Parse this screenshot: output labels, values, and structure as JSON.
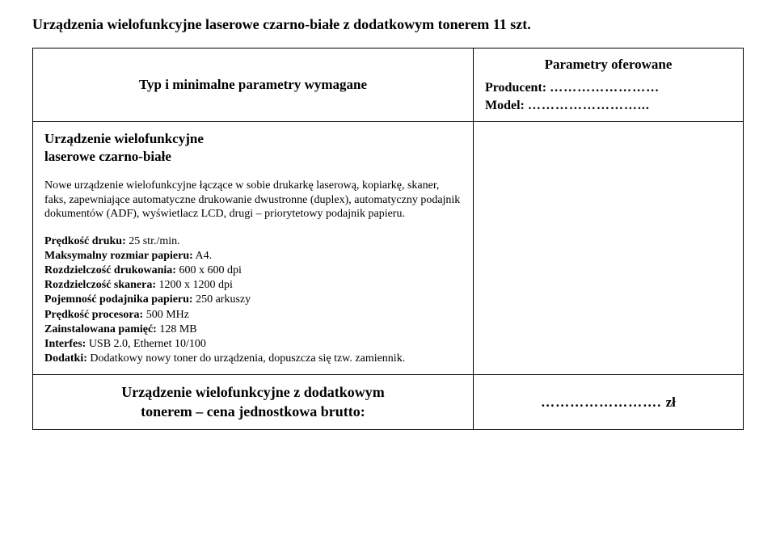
{
  "page": {
    "title": "Urządzenia wielofunkcyjne laserowe czarno-białe z dodatkowym tonerem 11 szt."
  },
  "header": {
    "left": "Typ i minimalne parametry wymagane",
    "right_title": "Parametry oferowane",
    "producer_label": "Producent:",
    "producer_dots": "……………………",
    "model_label": "Model:",
    "model_dots": "……………………..."
  },
  "body": {
    "device_label_line1": "Urządzenie wielofunkcyjne",
    "device_label_line2": "laserowe czarno-białe",
    "description": "Nowe urządzenie wielofunkcyjne łączące w sobie drukarkę laserową, kopiarkę, skaner, faks, zapewniające automatyczne drukowanie dwustronne (duplex), automatyczny podajnik dokumentów (ADF), wyświetlacz LCD, drugi – priorytetowy podajnik papieru.",
    "specs": {
      "speed_label": "Prędkość druku:",
      "speed_value": " 25 str./min.",
      "maxsize_label": "Maksymalny rozmiar papieru:",
      "maxsize_value": " A4.",
      "printres_label": "Rozdzielczość drukowania:",
      "printres_value": " 600 x 600 dpi",
      "scanres_label": "Rozdzielczość skanera:",
      "scanres_value": " 1200 x 1200 dpi",
      "tray_label": "Pojemność podajnika papieru:",
      "tray_value": " 250 arkuszy",
      "cpu_label": "Prędkość procesora:",
      "cpu_value": " 500 MHz",
      "mem_label": "Zainstalowana pamięć:",
      "mem_value": " 128 MB",
      "iface_label": "Interfes:",
      "iface_value": " USB 2.0, Ethernet 10/100",
      "extras_label": "Dodatki:",
      "extras_value": " Dodatkowy nowy toner do urządzenia, dopuszcza się tzw. zamiennik."
    }
  },
  "footer": {
    "left_line1": "Urządzenie wielofunkcyjne z dodatkowym",
    "left_line2": "tonerem – cena jednostkowa brutto:",
    "price_dots": "……………………. ",
    "price_unit": "zł"
  }
}
